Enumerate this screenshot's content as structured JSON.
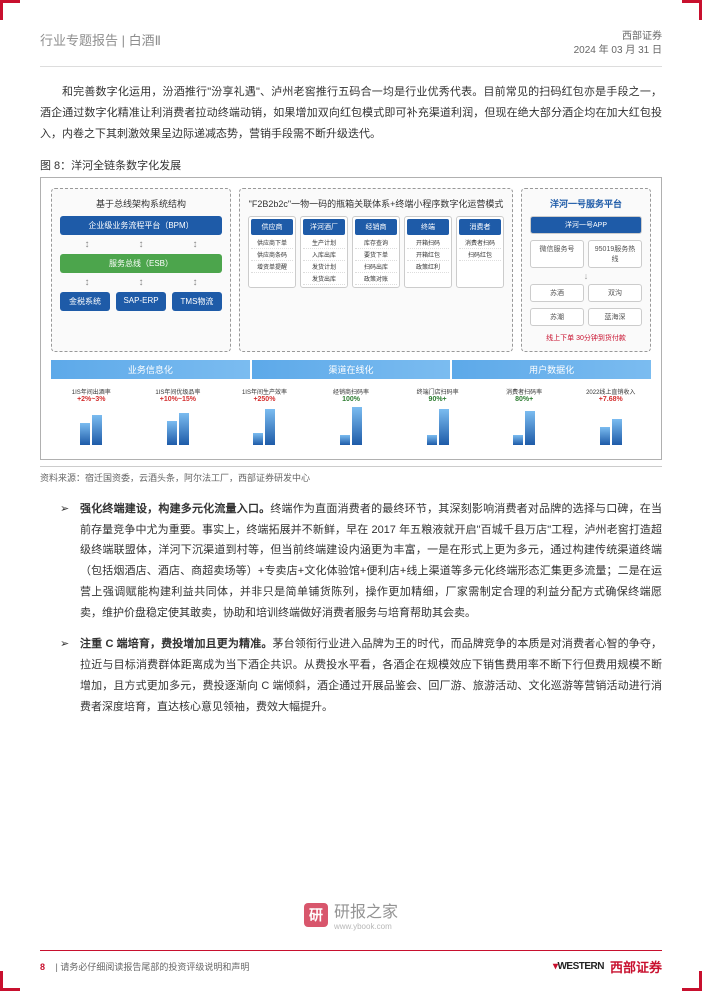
{
  "header": {
    "left": "行业专题报告 | 白酒Ⅱ",
    "company": "西部证券",
    "date": "2024 年 03 月 31 日"
  },
  "intro_para": "和完善数字化运用，汾酒推行\"汾享礼遇\"、泸州老窖推行五码合一均是行业优秀代表。目前常见的扫码红包亦是手段之一，酒企通过数字化精准让利消费者拉动终端动销，如果增加双向红包模式即可补充渠道利润，但现在绝大部分酒企均在加大红包投入，内卷之下其刺激效果呈边际递减态势，营销手段需不断升级迭代。",
  "figure_caption": "图 8：洋河全链条数字化发展",
  "diagram": {
    "panel_left": {
      "title": "基于总线架构系统结构",
      "top_block": "企业级业务流程平台（BPM）",
      "mid_block": "服务总线（ESB）",
      "bottom_blocks": [
        "金税系统",
        "SAP-ERP",
        "TMS物流"
      ]
    },
    "panel_mid": {
      "title": "\"F2B2b2c\"一物一码的瓶箱关联体系+终端小程序数字化运营模式",
      "columns": [
        {
          "header": "供应商",
          "items": [
            "供应商下单",
            "供应商条码",
            "增资单提醒"
          ]
        },
        {
          "header": "洋河酒厂",
          "items": [
            "生产计划",
            "入库出库",
            "发货计划",
            "发货出库"
          ]
        },
        {
          "header": "经销商",
          "items": [
            "库存查询",
            "要货下单",
            "扫码出库",
            "政策对账"
          ]
        },
        {
          "header": "终端",
          "items": [
            "开箱扫码",
            "开箱红包",
            "政策红利"
          ]
        },
        {
          "header": "消费者",
          "items": [
            "消费者扫码",
            "扫码红包"
          ]
        }
      ]
    },
    "panel_right": {
      "title": "洋河一号服务平台",
      "app": "洋河一号APP",
      "row1": [
        "微信服务号",
        "95019服务热线"
      ],
      "row2": [
        "苏酒",
        "双沟"
      ],
      "row3": [
        "苏潮",
        "蓝海深"
      ],
      "footer": "线上下单 30分钟到货付款"
    },
    "sections": [
      "业务信息化",
      "渠道在线化",
      "用户数据化"
    ],
    "charts": [
      {
        "label": "1IS年间出酒率",
        "value": "+2%~3%",
        "color": "red",
        "bars": [
          22,
          30
        ]
      },
      {
        "label": "1IS年间优级品率",
        "value": "+10%~15%",
        "color": "red",
        "bars": [
          24,
          32
        ]
      },
      {
        "label": "1IS年间生产效率",
        "value": "+250%",
        "color": "red",
        "bars": [
          12,
          36
        ]
      },
      {
        "label": "经销商扫码率",
        "value": "100%",
        "color": "green",
        "bars": [
          10,
          38
        ]
      },
      {
        "label": "终端门店扫码率",
        "value": "90%+",
        "color": "green",
        "bars": [
          10,
          36
        ]
      },
      {
        "label": "消费者扫码率",
        "value": "80%+",
        "color": "green",
        "bars": [
          10,
          34
        ]
      },
      {
        "label": "2022线上直销收入",
        "value": "+7.68%",
        "color": "red",
        "bars": [
          18,
          26
        ]
      }
    ]
  },
  "source": "资料来源：宿迁国资委，云酒头条，阿尔法工厂，西部证券研发中心",
  "bullets": [
    {
      "title": "强化终端建设，构建多元化流量入口。",
      "body": "终端作为直面消费者的最终环节，其深刻影响消费者对品牌的选择与口碑，在当前存量竞争中尤为重要。事实上，终端拓展并不新鲜，早在 2017 年五粮液就开启\"百城千县万店\"工程，泸州老窖打造超级终端联盟体，洋河下沉渠道到村等，但当前终端建设内涵更为丰富，一是在形式上更为多元，通过构建传统渠道终端（包括烟酒店、酒店、商超卖场等）+专卖店+文化体验馆+便利店+线上渠道等多元化终端形态汇集更多流量；二是在运营上强调赋能构建利益共同体，并非只是简单铺货陈列，操作更加精细，厂家需制定合理的利益分配方式确保终端愿卖，维护价盘稳定使其敢卖，协助和培训终端做好消费者服务与培育帮助其会卖。"
    },
    {
      "title": "注重 C 端培育，费投增加且更为精准。",
      "body": "茅台领衔行业进入品牌为王的时代，而品牌竞争的本质是对消费者心智的争夺，拉近与目标消费群体距离成为当下酒企共识。从费投水平看，各酒企在规模效应下销售费用率不断下行但费用规模不断增加，且方式更加多元，费投逐渐向 C 端倾斜，酒企通过开展品鉴会、回厂游、旅游活动、文化巡游等营销活动进行消费者深度培育，直达核心意见领袖，费效大幅提升。"
    }
  ],
  "footer": {
    "page": "8",
    "disclaimer": "请务必仔细阅读报告尾部的投资评级说明和声明",
    "logo_en": "WESTERN",
    "logo_cn": "西部证券"
  },
  "watermark": {
    "icon": "研",
    "main": "研报之家",
    "sub": "www.ybook.com"
  }
}
